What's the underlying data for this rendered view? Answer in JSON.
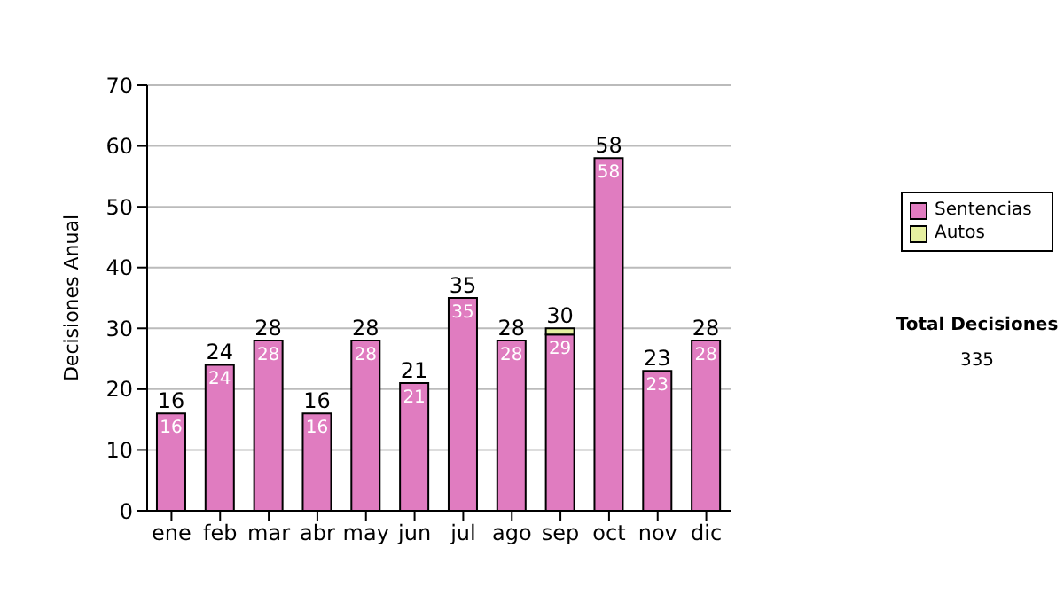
{
  "chart_data": {
    "type": "bar",
    "stacked": true,
    "ylabel": "Decisiones Anual",
    "categories": [
      "ene",
      "feb",
      "mar",
      "abr",
      "may",
      "jun",
      "jul",
      "ago",
      "sep",
      "oct",
      "nov",
      "dic"
    ],
    "series": [
      {
        "name": "Sentencias",
        "color": "#e07cc0",
        "values": [
          16,
          24,
          28,
          16,
          28,
          21,
          35,
          28,
          29,
          58,
          23,
          28
        ],
        "value_labels": [
          "16",
          "24",
          "28",
          "16",
          "28",
          "21",
          "35",
          "28",
          "29",
          "58",
          "23",
          "28"
        ]
      },
      {
        "name": "Autos",
        "color": "#e6f0a0",
        "values": [
          0,
          0,
          0,
          0,
          0,
          0,
          0,
          0,
          1,
          0,
          0,
          0
        ]
      }
    ],
    "totals": [
      "16",
      "24",
      "28",
      "16",
      "28",
      "21",
      "35",
      "28",
      "30",
      "58",
      "23",
      "28"
    ],
    "ylim": [
      0,
      70
    ],
    "yticks": [
      0,
      10,
      20,
      30,
      40,
      50,
      60,
      70
    ],
    "grid": "y",
    "legend": "right",
    "annotations": [
      "Total Decisiones",
      "335"
    ]
  }
}
